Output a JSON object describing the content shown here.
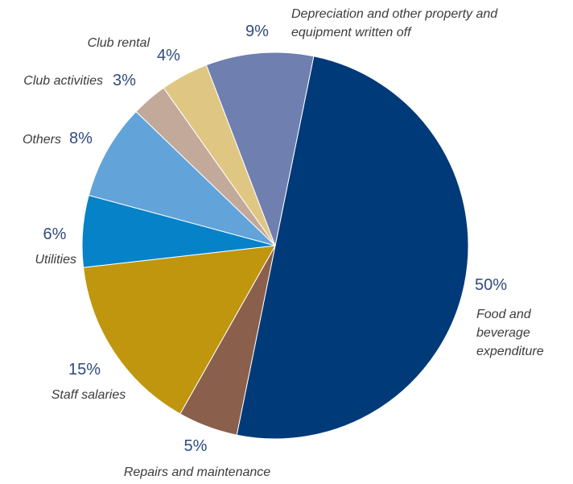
{
  "chart_data": {
    "type": "pie",
    "categories": [
      "Food and beverage expenditure",
      "Repairs and maintenance",
      "Staff salaries",
      "Utilities",
      "Others",
      "Club activities",
      "Club rental",
      "Depreciation and other property and equipment written off"
    ],
    "values": [
      50,
      5,
      15,
      6,
      8,
      3,
      4,
      9
    ],
    "value_labels": [
      "50%",
      "5%",
      "15%",
      "6%",
      "8%",
      "3%",
      "4%",
      "9%"
    ],
    "colors": [
      "#003a78",
      "#8a5f4c",
      "#c0960e",
      "#0582c8",
      "#62a3d9",
      "#c2a99a",
      "#dfc783",
      "#6e7fb0"
    ]
  }
}
